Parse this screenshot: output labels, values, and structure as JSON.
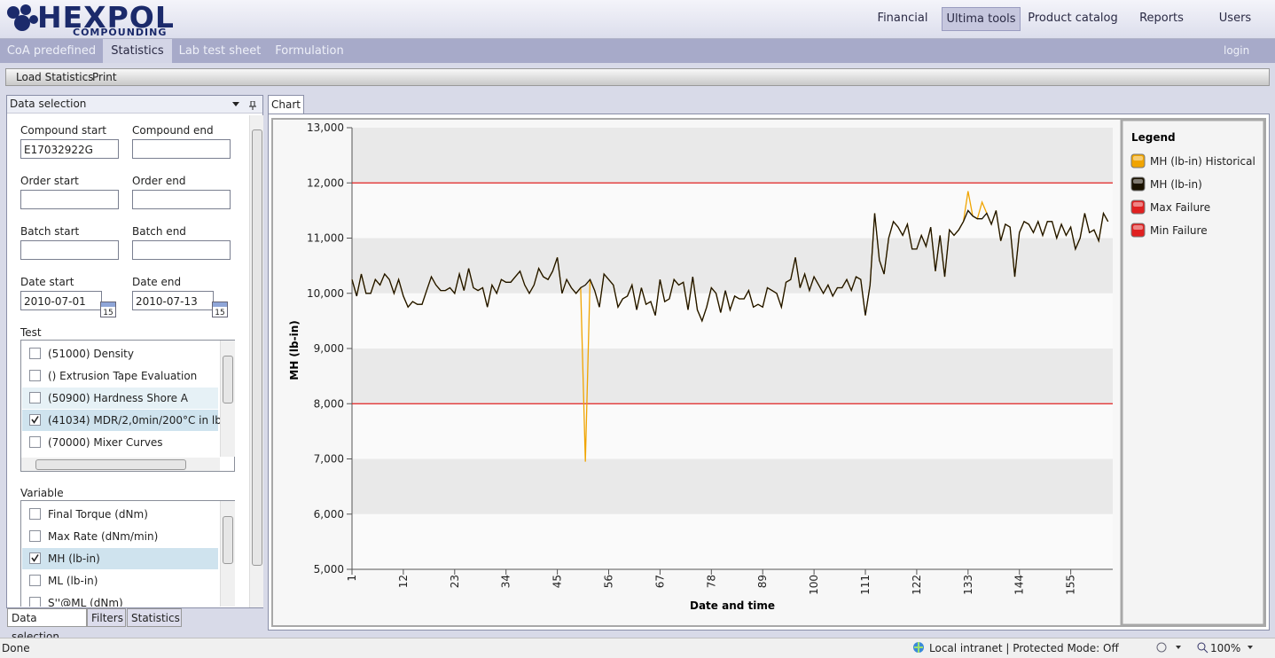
{
  "header": {
    "logo": "HEXPOL",
    "logo_sub": "COMPOUNDING",
    "nav": [
      "Financial",
      "Ultima tools",
      "Product catalog",
      "Reports",
      "Users"
    ],
    "nav_active": 1
  },
  "subnav": {
    "tabs": [
      "CoA predefined",
      "Statistics",
      "Lab test sheet",
      "Formulation"
    ],
    "active": 1,
    "login": "login"
  },
  "toolbar": {
    "items": [
      "Load Statistics",
      "Print"
    ]
  },
  "panel": {
    "title": "Data selection",
    "fields": [
      [
        {
          "label": "Compound start",
          "value": "E17032922G"
        },
        {
          "label": "Compound end"
        }
      ],
      [
        {
          "label": "Order start"
        },
        {
          "label": "Order end"
        }
      ],
      [
        {
          "label": "Batch start"
        },
        {
          "label": "Batch end"
        }
      ],
      [
        {
          "label": "Date start",
          "value": "2010-07-01",
          "calendar": "15"
        },
        {
          "label": "Date end",
          "value": "2010-07-13",
          "calendar": "15"
        }
      ]
    ],
    "test": {
      "label": "Test",
      "items": [
        {
          "text": "(51000) Density"
        },
        {
          "text": "() Extrusion Tape Evaluation"
        },
        {
          "text": "(50900) Hardness Shore A",
          "hover": true
        },
        {
          "text": "(41034) MDR/2,0min/200°C in lb",
          "checked": true
        },
        {
          "text": "(70000) Mixer Curves"
        }
      ]
    },
    "variable": {
      "label": "Variable",
      "items": [
        {
          "text": "Final Torque (dNm)"
        },
        {
          "text": "Max Rate (dNm/min)"
        },
        {
          "text": "MH (lb-in)",
          "checked": true
        },
        {
          "text": "ML (lb-in)"
        },
        {
          "text": "S''@ML (dNm)"
        }
      ]
    },
    "bottom_tabs": [
      "Data selection",
      "Filters",
      "Statistics"
    ],
    "bottom_active": 0
  },
  "chart_tab": "Chart",
  "chart_data": {
    "type": "line",
    "x_label": "Date and time",
    "y_label": "MH (lb-in)",
    "legend_title": "Legend",
    "x": [
      1,
      2,
      3,
      4,
      5,
      6,
      7,
      8,
      9,
      10,
      11,
      12,
      13,
      14,
      15,
      16,
      17,
      18,
      19,
      20,
      21,
      22,
      23,
      24,
      25,
      26,
      27,
      28,
      29,
      30,
      31,
      32,
      33,
      34,
      35,
      36,
      37,
      38,
      39,
      40,
      41,
      42,
      43,
      44,
      45,
      46,
      47,
      48,
      49,
      50,
      51,
      52,
      53,
      54,
      55,
      56,
      57,
      58,
      59,
      60,
      61,
      62,
      63,
      64,
      65,
      66,
      67,
      68,
      69,
      70,
      71,
      72,
      73,
      74,
      75,
      76,
      77,
      78,
      79,
      80,
      81,
      82,
      83,
      84,
      85,
      86,
      87,
      88,
      89,
      90,
      91,
      92,
      93,
      94,
      95,
      96,
      97,
      98,
      99,
      100,
      101,
      102,
      103,
      104,
      105,
      106,
      107,
      108,
      109,
      110,
      111,
      112,
      113,
      114,
      115,
      116,
      117,
      118,
      119,
      120,
      121,
      122,
      123,
      124,
      125,
      126,
      127,
      128,
      129,
      130,
      131,
      132,
      133,
      134,
      135,
      136,
      137,
      138,
      139,
      140,
      141,
      142,
      143,
      144,
      145,
      146,
      147,
      148,
      149,
      150,
      151,
      152,
      153,
      154,
      155,
      156,
      157,
      158,
      159,
      160,
      161,
      162,
      163
    ],
    "series": [
      {
        "name": "MH (lb-in) Historical",
        "color": "#f0a400",
        "values": [
          10250,
          9950,
          10350,
          10000,
          10000,
          10250,
          10150,
          10350,
          10250,
          10000,
          10250,
          9950,
          9750,
          9850,
          9800,
          9800,
          10050,
          10300,
          10150,
          10050,
          10050,
          10100,
          10000,
          10350,
          10050,
          10450,
          10100,
          10050,
          10100,
          9750,
          10150,
          10000,
          10250,
          10200,
          10200,
          10300,
          10400,
          10150,
          10000,
          10150,
          10450,
          10300,
          10250,
          10400,
          10650,
          10000,
          10250,
          10100,
          10000,
          10100,
          6950,
          10250,
          10050,
          9750,
          10350,
          10250,
          10150,
          9750,
          9900,
          9950,
          10150,
          9700,
          10100,
          9800,
          9850,
          9600,
          10250,
          9850,
          9900,
          10250,
          10150,
          10200,
          9700,
          10300,
          9700,
          9500,
          9750,
          10100,
          10000,
          9650,
          10050,
          9700,
          9950,
          9900,
          9900,
          10050,
          9750,
          9800,
          9750,
          10100,
          10050,
          10000,
          9750,
          10200,
          10250,
          10650,
          10100,
          10350,
          10050,
          10300,
          10150,
          10000,
          10150,
          9950,
          10100,
          10100,
          10250,
          10050,
          10300,
          10250,
          9600,
          10150,
          11450,
          10600,
          10350,
          11000,
          11300,
          11200,
          11050,
          11250,
          10800,
          10800,
          11050,
          10850,
          11200,
          10400,
          11050,
          10300,
          11150,
          11050,
          11150,
          11300,
          11850,
          11400,
          11350,
          11650,
          11450,
          11250,
          11500,
          10950,
          11250,
          11200,
          10300,
          11100,
          11300,
          11250,
          11100,
          11300,
          11050,
          11300,
          11300,
          11000,
          11250,
          11050,
          11200,
          10800,
          11000,
          11450,
          11100,
          11150,
          10950,
          11450,
          11300
        ]
      },
      {
        "name": "MH (lb-in)",
        "color": "#1a1200",
        "values": [
          10250,
          9950,
          10350,
          10000,
          10000,
          10250,
          10150,
          10350,
          10250,
          10000,
          10250,
          9950,
          9750,
          9850,
          9800,
          9800,
          10050,
          10300,
          10150,
          10050,
          10050,
          10100,
          10000,
          10350,
          10050,
          10450,
          10100,
          10050,
          10100,
          9750,
          10150,
          10000,
          10250,
          10200,
          10200,
          10300,
          10400,
          10150,
          10000,
          10150,
          10450,
          10300,
          10250,
          10400,
          10650,
          10000,
          10250,
          10100,
          10000,
          10100,
          10150,
          10250,
          10050,
          9750,
          10350,
          10250,
          10150,
          9750,
          9900,
          9950,
          10150,
          9700,
          10100,
          9800,
          9850,
          9600,
          10250,
          9850,
          9900,
          10250,
          10150,
          10200,
          9700,
          10300,
          9700,
          9500,
          9750,
          10100,
          10000,
          9650,
          10050,
          9700,
          9950,
          9900,
          9900,
          10050,
          9750,
          9800,
          9750,
          10100,
          10050,
          10000,
          9750,
          10200,
          10250,
          10650,
          10100,
          10350,
          10050,
          10300,
          10150,
          10000,
          10150,
          9950,
          10100,
          10100,
          10250,
          10050,
          10300,
          10250,
          9600,
          10150,
          11450,
          10600,
          10350,
          11000,
          11300,
          11200,
          11050,
          11250,
          10800,
          10800,
          11050,
          10850,
          11200,
          10400,
          11050,
          10300,
          11150,
          11050,
          11150,
          11300,
          11500,
          11400,
          11350,
          11350,
          11450,
          11250,
          11500,
          10950,
          11250,
          11200,
          10300,
          11100,
          11300,
          11250,
          11100,
          11300,
          11050,
          11300,
          11300,
          11000,
          11250,
          11050,
          11200,
          10800,
          11000,
          11450,
          11100,
          11150,
          10950,
          11450,
          11300
        ]
      }
    ],
    "reference_lines": [
      {
        "name": "Max Failure",
        "color": "#e02020",
        "value": 12000
      },
      {
        "name": "Min Failure",
        "color": "#e02020",
        "value": 8000
      }
    ],
    "xlim": [
      1,
      164
    ],
    "xticks": [
      1,
      12,
      23,
      34,
      45,
      56,
      67,
      78,
      89,
      100,
      111,
      122,
      133,
      144,
      155
    ],
    "ylim": [
      5000,
      13000
    ],
    "yticks": [
      {
        "value": 5000,
        "label": "5,000"
      },
      {
        "value": 6000,
        "label": "6,000"
      },
      {
        "value": 7000,
        "label": "7,000"
      },
      {
        "value": 8000,
        "label": "8,000"
      },
      {
        "value": 9000,
        "label": "9,000"
      },
      {
        "value": 10000,
        "label": "10,000"
      },
      {
        "value": 11000,
        "label": "11,000"
      },
      {
        "value": 12000,
        "label": "12,000"
      },
      {
        "value": 13000,
        "label": "13,000"
      }
    ],
    "banded": true
  },
  "status": {
    "left": "Done",
    "zone": "Local intranet | Protected Mode: Off",
    "zoom": "100%"
  }
}
